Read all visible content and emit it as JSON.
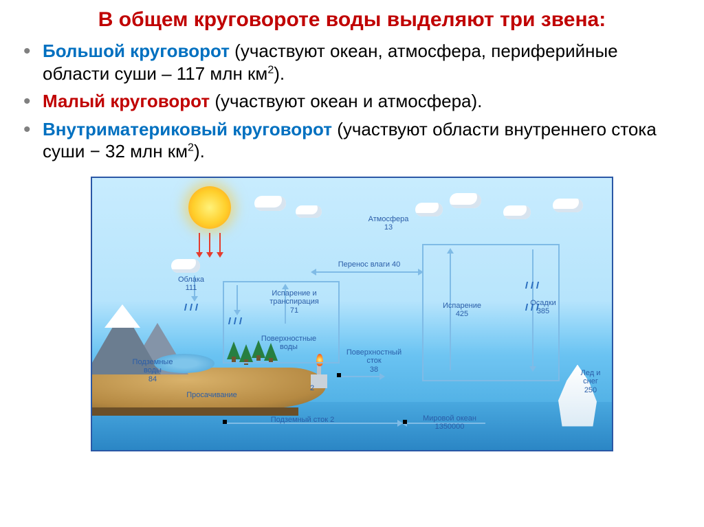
{
  "title": "В общем круговороте воды выделяют три звена:",
  "bullets": [
    {
      "lead": "Большой круговорот",
      "lead_color": "#0070c0",
      "rest": " (участвуют океан, атмосфера, периферийные области суши – 117 млн км",
      "sup": "2",
      "tail": ")."
    },
    {
      "lead": "Малый круговорот",
      "lead_color": "#c00000",
      "rest": " (участвуют океан и атмосфера).",
      "sup": "",
      "tail": ""
    },
    {
      "lead": "Внутриматериковый круговорот",
      "lead_color": "#0070c0",
      "rest": " (участвуют области внутреннего стока суши − 32 млн км",
      "sup": "2",
      "tail": ")."
    }
  ],
  "diagram": {
    "colors": {
      "sky_top": "#c8ecfe",
      "sky_bottom": "#3ca1da",
      "ocean_top": "#49a8df",
      "ocean_bottom": "#2b86c5",
      "border": "#2a57a5",
      "label": "#2a5da8",
      "box_border": "#7fbbe6",
      "arrow": "#7fbbe6",
      "mountain": "#6b7d90",
      "mountain_cap": "#ffffff",
      "land": "#d9b26b",
      "land_dark": "#8a6a32",
      "tree": "#1f7a3a",
      "trunk": "#6b4f28",
      "sun_core": "#fff27a",
      "sun_mid": "#ffcf2b",
      "sun_outer": "#ff9a1a",
      "red_arrow": "#e43c2e"
    },
    "labels": {
      "atmosphere": "Атмосфера\n13",
      "clouds": "Облака\n111",
      "transfer": "Перенос влаги 40",
      "evap_transp": "Испарение и\nтранспирация\n71",
      "surface_water": "Поверхностные\nводы",
      "groundwater": "Подземные\nводы\n84",
      "infiltration": "Просачивание",
      "surface_runoff": "Поверхностный\nсток\n38",
      "subrunoff": "2",
      "underground_runoff": "Подземный сток 2",
      "world_ocean": "Мировой океан\n1350000",
      "evaporation": "Испарение\n425",
      "precip": "Осадки\n385",
      "ice": "Лед и\nснег\n250"
    }
  }
}
